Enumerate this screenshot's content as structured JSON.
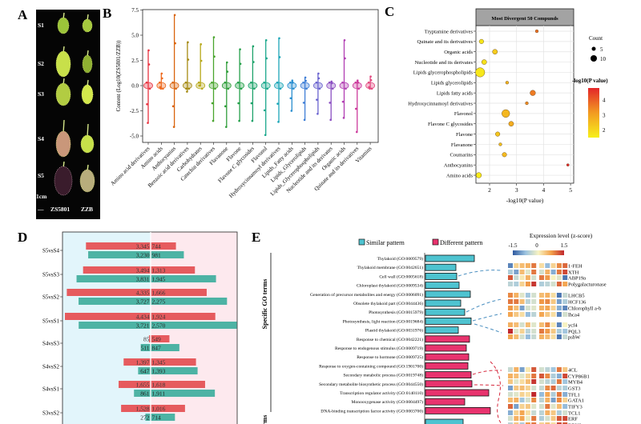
{
  "panels": {
    "a": "A",
    "b": "B",
    "c": "C",
    "d": "D",
    "e": "E"
  },
  "panel_a": {
    "stages": [
      "S1",
      "S2",
      "S3",
      "S4",
      "S5"
    ],
    "scale_label": "1cm",
    "scale_bar": "—",
    "cultivars": [
      "ZS5801",
      "ZZB"
    ]
  },
  "chart_data": [
    {
      "panel": "B",
      "type": "scatter",
      "ylabel": "Content (Log10(ZS5801/ZZB))",
      "ylim": [
        -5.3,
        7.6
      ],
      "yticks": [
        "-5.0",
        "-2.5",
        "0.0",
        "2.5",
        "5.0",
        "7.5"
      ],
      "ytick_values": [
        -5,
        -2.5,
        0,
        2.5,
        5,
        7.5
      ],
      "categories": [
        "Amino acid derivatives",
        "Amino acids",
        "Anthocyanins",
        "Benzoic acid derivatives",
        "Carbohydrates",
        "Catechin derivatives",
        "Flavanone",
        "Flavone",
        "Flavone C glycosides",
        "Flavonol",
        "Hydroxycinnamoyl derivatives",
        "Lipids_Fatty acids",
        "Lipids_Glycerolipids",
        "Lipids_Glycerophospholipids",
        "Nucleotide and its derivates",
        "Organic acids",
        "Quinate and its derivatives",
        "Vitamins"
      ],
      "min": [
        -3.7,
        -0.3,
        -4.1,
        -0.6,
        0.0,
        -3.5,
        -4.1,
        -3.5,
        -3.5,
        -4.9,
        -3.6,
        -2.5,
        -3.4,
        -2.8,
        -3.4,
        -3.2,
        -4.6,
        -0.3
      ],
      "max": [
        3.5,
        1.2,
        7.0,
        4.3,
        4.1,
        4.8,
        2.3,
        3.6,
        3.9,
        4.5,
        4.7,
        0.5,
        0.8,
        1.2,
        0.4,
        4.5,
        0.5,
        0.9
      ],
      "colors": [
        "#e8323f",
        "#ee6a1f",
        "#d9640e",
        "#a58a12",
        "#b7a81a",
        "#4aa52e",
        "#2f9e3a",
        "#25a04a",
        "#1ea36a",
        "#1aa88d",
        "#1ca6b8",
        "#2b8fd0",
        "#3f7fd6",
        "#6a63cf",
        "#8b4fc2",
        "#b13fb3",
        "#cc3a9c",
        "#e2487f"
      ]
    },
    {
      "panel": "C",
      "type": "scatter",
      "title": "Most Divergent 50 Compunds",
      "xlabel": "-log10(P value)",
      "xticks": [
        2,
        3,
        4,
        5
      ],
      "xlim": [
        1.55,
        5.1
      ],
      "grid": true,
      "categories": [
        "Tryptamine derivatives",
        "Quinate and its derivatives",
        "Organic acids",
        "Nucleotide and its derivates",
        "Lipids glycerophospholipids",
        "Lipids glycerolipids",
        "Lipids fatty acids",
        "Hydroxycinnamoyl derivatives",
        "Flavonol",
        "Flavone C glycosides",
        "Flavone",
        "Flavanone",
        "Coumarins",
        "Anthocyanins",
        "Amino acids"
      ],
      "x": [
        3.75,
        1.7,
        2.2,
        1.8,
        1.65,
        2.65,
        3.6,
        3.38,
        2.6,
        2.8,
        2.3,
        2.4,
        2.55,
        4.9,
        1.6
      ],
      "count": [
        3,
        6,
        7,
        7,
        16,
        3,
        8,
        3,
        13,
        7,
        6,
        3,
        6,
        2,
        8
      ],
      "size_legend": {
        "title": "Count",
        "values": [
          5,
          10
        ]
      },
      "color_legend": {
        "title": "-log10(P value)",
        "ticks": [
          2,
          3,
          4
        ],
        "low_color": "#f7f01a",
        "mid_color": "#f29b22",
        "high_color": "#e3262a"
      },
      "legend_placement": "right"
    },
    {
      "panel": "D",
      "type": "bar",
      "categories": [
        "S5vsS4",
        "S5vsS3",
        "S5vsS2",
        "S5vsS1",
        "S4vsS3",
        "S4vsS2",
        "S4vsS1",
        "S3vsS2"
      ],
      "red_left": [
        3345,
        3494,
        4335,
        4434,
        85,
        1397,
        1655,
        1528
      ],
      "red_right": [
        744,
        1313,
        1666,
        1924,
        549,
        1345,
        1618,
        1016
      ],
      "teal_left": [
        3230,
        3831,
        3727,
        3721,
        511,
        647,
        861,
        272
      ],
      "teal_right": [
        981,
        1945,
        2275,
        2570,
        847,
        1393,
        1911,
        714
      ],
      "colors": {
        "red": "#e65b5e",
        "teal": "#4db3a4",
        "left_bg": "#e2f5fb",
        "right_bg": "#fde9ee"
      }
    },
    {
      "panel": "E",
      "type": "bar",
      "group_label": "Specific GO terms",
      "next_group_label_partial": "rms",
      "legend": [
        "Similar pattern",
        "Different pattern"
      ],
      "colors": {
        "similar": "#4ec3d0",
        "different": "#e8336e"
      },
      "terms": [
        {
          "label": "Thylakoid (GO:0009579)",
          "pattern": "similar",
          "value": 61
        },
        {
          "label": "Thylakoid membrane (GO:0042651)",
          "pattern": "similar",
          "value": 38
        },
        {
          "label": "Cell wall (GO:0005618)",
          "pattern": "similar",
          "value": 39
        },
        {
          "label": "Chloroplast thylakoid (GO:0009534)",
          "pattern": "similar",
          "value": 42
        },
        {
          "label": "Generation of precursor metabolites and energy (GO:0006091)",
          "pattern": "similar",
          "value": 56
        },
        {
          "label": "Obsolete thylakoid part (GO:0044436)",
          "pattern": "similar",
          "value": 44
        },
        {
          "label": "Photosynthesis (GO:0015979)",
          "pattern": "similar",
          "value": 49
        },
        {
          "label": "Photosynthesis, light reaction (GO:0019684)",
          "pattern": "similar",
          "value": 57
        },
        {
          "label": "Plastid thylakoid (GO:0031976)",
          "pattern": "similar",
          "value": 41
        },
        {
          "label": "Response to chemical (GO:0042221)",
          "pattern": "different",
          "value": 55
        },
        {
          "label": "Response to endogenous stimulus (GO:0009719)",
          "pattern": "different",
          "value": 51
        },
        {
          "label": "Response to hormone (GO:0009725)",
          "pattern": "different",
          "value": 54
        },
        {
          "label": "Response to oxygen-containing compound (GO:1901700)",
          "pattern": "different",
          "value": 53
        },
        {
          "label": "Secondary metabolic process (GO:0019748)",
          "pattern": "different",
          "value": 57
        },
        {
          "label": "Secondary metabolite biosynthetic process (GO:0044550)",
          "pattern": "different",
          "value": 58
        },
        {
          "label": "Transcription regulator activity (GO:0140110)",
          "pattern": "different",
          "value": 79
        },
        {
          "label": "Monooxygenase activity (GO:0004497)",
          "pattern": "different",
          "value": 49
        },
        {
          "label": "DNA-binding transcription factor activity (GO:0003700)",
          "pattern": "different",
          "value": 81
        }
      ]
    },
    {
      "panel": "E-heatmap",
      "type": "heatmap",
      "title": "Expression level (z-score)",
      "scale_ticks": [
        "-1.5",
        "0",
        "1.5"
      ],
      "scale_range": [
        -1.5,
        1.5
      ],
      "groups": [
        {
          "genes": [
            "1-FEH",
            "XTH",
            "ABP19a",
            "Polygalacturonase"
          ],
          "z": [
            [
              -1.2,
              0.3,
              0.5,
              0.6,
              1.0,
              0.2,
              -0.8,
              0.3,
              0.9,
              1.1
            ],
            [
              -0.6,
              -1.0,
              0.5,
              -0.2,
              1.0,
              -0.3,
              0.6,
              -0.9,
              1.0,
              1.3
            ],
            [
              1.2,
              -0.4,
              0.1,
              0.6,
              -0.3,
              1.0,
              0.8,
              0.0,
              -0.2,
              -1.3
            ],
            [
              -0.5,
              -0.6,
              0.3,
              0.8,
              1.4,
              -0.6,
              -0.5,
              -0.3,
              1.1,
              0.7
            ]
          ]
        },
        {
          "genes": [
            "LHCB5",
            "HCF136",
            "Chlorophyll a-b",
            "lhca4"
          ],
          "z": [
            [
              0.9,
              0.6,
              -0.2,
              -0.7,
              -0.3,
              0.5,
              0.6,
              0.2,
              -1.3,
              -0.4
            ],
            [
              1.0,
              1.0,
              0.5,
              -0.5,
              -0.3,
              0.8,
              0.9,
              0.4,
              -1.0,
              -0.6
            ],
            [
              0.8,
              0.5,
              -1.0,
              -0.3,
              -0.2,
              0.6,
              0.7,
              0.3,
              -0.9,
              -1.2
            ],
            [
              0.7,
              0.4,
              0.2,
              -0.8,
              -0.5,
              0.7,
              0.4,
              0.2,
              -1.2,
              -0.3
            ]
          ]
        },
        {
          "genes": [
            "ycf4",
            "PQL3",
            "psbW"
          ],
          "z": [
            [
              0.6,
              0.5,
              -0.3,
              0.5,
              -0.2,
              0.5,
              0.9,
              0.1,
              -1.2,
              0.0
            ],
            [
              1.5,
              -0.2,
              0.3,
              -0.5,
              -0.3,
              1.0,
              0.8,
              0.4,
              -0.6,
              -0.7
            ],
            [
              0.7,
              0.5,
              -0.3,
              -0.8,
              -0.4,
              0.6,
              0.5,
              0.2,
              -1.3,
              -0.4
            ]
          ]
        },
        {
          "genes": [
            "4CL",
            "CYP86B1",
            "MYB4",
            "GST3",
            "TFL1",
            "GATA1",
            "TIFY3",
            "TCL1",
            "ERF",
            "BRN2"
          ],
          "z": [
            [
              -0.4,
              0.6,
              -1.0,
              0.1,
              1.2,
              -0.3,
              -0.5,
              -0.7,
              1.0,
              0.4
            ],
            [
              0.6,
              0.5,
              -0.2,
              0.3,
              1.0,
              1.2,
              0.9,
              -0.6,
              -0.9,
              1.3
            ],
            [
              0.4,
              -0.2,
              0.2,
              0.5,
              1.4,
              -0.3,
              -0.5,
              -0.6,
              1.0,
              -0.7
            ],
            [
              -1.0,
              0.4,
              0.5,
              0.3,
              -0.3,
              -0.4,
              0.9,
              1.1,
              -0.5,
              -0.6
            ],
            [
              -0.3,
              -0.2,
              0.3,
              0.2,
              1.5,
              -0.8,
              0.7,
              -0.6,
              1.0,
              -0.9
            ],
            [
              0.5,
              0.6,
              -0.7,
              -0.3,
              0.9,
              -0.5,
              0.6,
              -1.0,
              0.9,
              0.3
            ],
            [
              1.1,
              -1.0,
              0.3,
              0.4,
              -0.2,
              -0.3,
              1.0,
              -0.2,
              0.5,
              -0.8
            ],
            [
              -0.9,
              0.3,
              0.7,
              0.2,
              -0.4,
              -0.5,
              0.6,
              0.4,
              -0.6,
              -0.3
            ],
            [
              -0.3,
              0.6,
              0.7,
              -0.1,
              1.0,
              -0.6,
              -0.3,
              0.4,
              1.2,
              1.3
            ],
            [
              -0.5,
              0.4,
              -0.6,
              0.8,
              1.0,
              0.3,
              0.5,
              0.2,
              1.3,
              1.2
            ]
          ]
        }
      ]
    }
  ]
}
